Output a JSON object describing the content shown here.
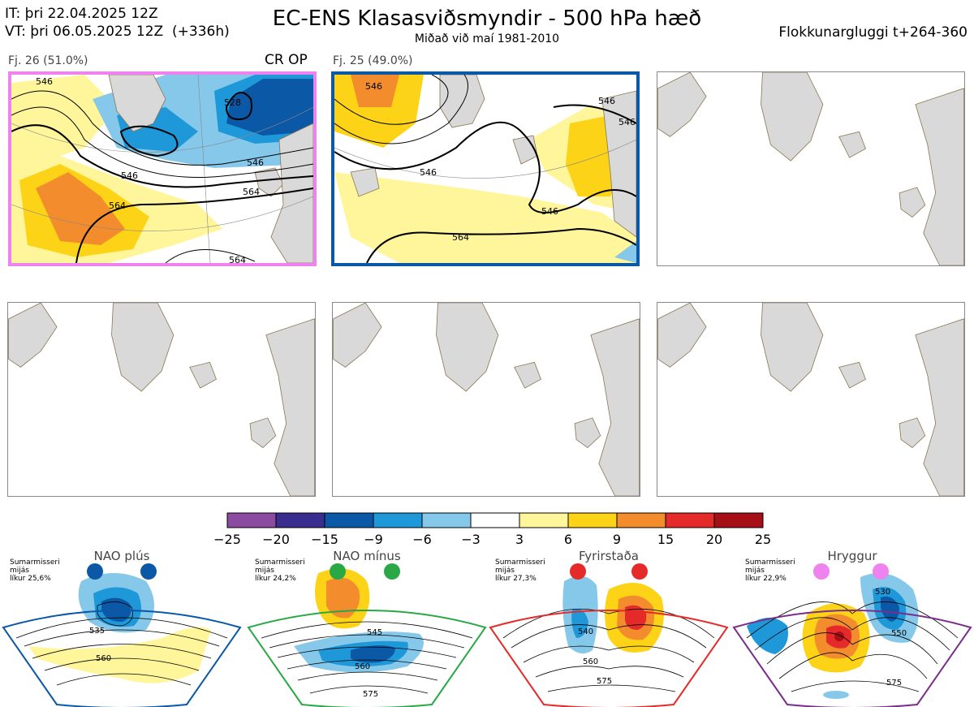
{
  "header": {
    "it_line": "IT: þri 22.04.2025 12Z",
    "vt_line": "VT: þri 06.05.2025 12Z  (+336h)",
    "title": "EC-ENS Klasasviðsmyndir - 500 hPa hæð",
    "subtitle": "Miðað við maí 1981-2010",
    "window": "Flokkunargluggi t+264-360"
  },
  "colors": {
    "land": "#d9d9d9",
    "coast": "#8a7450",
    "cluster1_border": "#ee82ee",
    "cluster2_border": "#0a58a6"
  },
  "panels": [
    {
      "label": "Fj. 26 (51.0%)",
      "tag": "CR OP",
      "border": "#ee82ee",
      "contours": [
        "546",
        "528",
        "546",
        "546",
        "564",
        "564",
        "564"
      ]
    },
    {
      "label": "Fj. 25 (49.0%)",
      "tag": "",
      "border": "#0a58a6",
      "contours": [
        "546",
        "546",
        "546",
        "546",
        "564",
        "546"
      ]
    },
    {
      "label": "",
      "tag": "",
      "border": ""
    },
    {
      "label": "",
      "tag": "",
      "border": ""
    },
    {
      "label": "",
      "tag": "",
      "border": ""
    },
    {
      "label": "",
      "tag": "",
      "border": ""
    }
  ],
  "chart_data": {
    "type": "heatmap",
    "colorbar": {
      "ticks": [
        "−25",
        "−20",
        "−15",
        "−9",
        "−6",
        "−3",
        "3",
        "6",
        "9",
        "15",
        "20",
        "25"
      ],
      "colors": [
        "#8b4ba0",
        "#3b2d8f",
        "#0a58a6",
        "#1e98d8",
        "#86c8ea",
        "#ffffff",
        "#fff59a",
        "#fcd316",
        "#f28c2d",
        "#e52b2a",
        "#a50f15"
      ]
    }
  },
  "regimes": [
    {
      "name": "NAO plús",
      "note": "Sumarmisseri\nmijás\nlíkur 25,6%",
      "color": "#0a58a6",
      "contours": [
        "535",
        "560"
      ]
    },
    {
      "name": "NAO mínus",
      "note": "Sumarmisseri\nmijás\nlíkur 24,2%",
      "color": "#29a845",
      "contours": [
        "545",
        "560",
        "575"
      ]
    },
    {
      "name": "Fyrirstaða",
      "note": "Sumarmisseri\nmijás\nlíkur 27,3%",
      "color": "#e52b2a",
      "contours": [
        "540",
        "560",
        "575"
      ]
    },
    {
      "name": "Hryggur",
      "note": "Sumarmisseri\nmijás\nlíkur 22,9%",
      "color": "#ee82ee",
      "contours": [
        "530",
        "550",
        "575"
      ]
    }
  ]
}
